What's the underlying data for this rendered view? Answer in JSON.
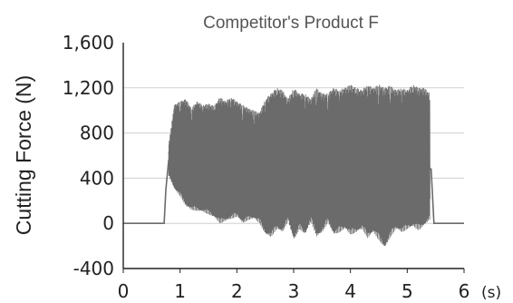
{
  "chart_data": {
    "type": "line",
    "title": "Competitor's Product F",
    "xlabel": "",
    "x_unit": "(s)",
    "ylabel": "Cutting Force (N)",
    "xlim": [
      0,
      6
    ],
    "ylim": [
      -400,
      1600
    ],
    "x_ticks": [
      "0",
      "1",
      "2",
      "3",
      "4",
      "5",
      "6"
    ],
    "y_ticks": [
      "1,600",
      "1,200",
      "800",
      "400",
      "0",
      "-400"
    ],
    "grid": "horizontal",
    "series": [
      {
        "color": "#6b6b6b",
        "points": [
          [
            0.0,
            0
          ],
          [
            0.72,
            0
          ],
          [
            0.75,
            300
          ],
          [
            0.8,
            560
          ],
          [
            0.9,
            650
          ],
          [
            1.0,
            620
          ],
          [
            1.2,
            600
          ],
          [
            1.5,
            580
          ],
          [
            1.8,
            560
          ],
          [
            2.0,
            600
          ],
          [
            2.3,
            560
          ],
          [
            2.5,
            500
          ],
          [
            2.8,
            560
          ],
          [
            3.0,
            520
          ],
          [
            3.3,
            540
          ],
          [
            3.6,
            500
          ],
          [
            4.0,
            540
          ],
          [
            4.3,
            500
          ],
          [
            4.6,
            520
          ],
          [
            5.0,
            500
          ],
          [
            5.3,
            520
          ],
          [
            5.42,
            480
          ],
          [
            5.47,
            0
          ],
          [
            6.0,
            0
          ]
        ],
        "envelope": [
          [
            0.8,
            420,
            700
          ],
          [
            0.9,
            300,
            1050
          ],
          [
            1.0,
            240,
            1080
          ],
          [
            1.1,
            150,
            1100
          ],
          [
            1.2,
            120,
            1020
          ],
          [
            1.3,
            110,
            1080
          ],
          [
            1.4,
            100,
            1050
          ],
          [
            1.5,
            80,
            1060
          ],
          [
            1.6,
            50,
            1040
          ],
          [
            1.7,
            0,
            1120
          ],
          [
            1.8,
            20,
            1080
          ],
          [
            1.9,
            40,
            1120
          ],
          [
            2.0,
            60,
            1080
          ],
          [
            2.1,
            0,
            1050
          ],
          [
            2.2,
            30,
            1020
          ],
          [
            2.3,
            40,
            1000
          ],
          [
            2.4,
            0,
            980
          ],
          [
            2.5,
            -100,
            1100
          ],
          [
            2.6,
            -120,
            1150
          ],
          [
            2.7,
            -50,
            1200
          ],
          [
            2.8,
            -80,
            1180
          ],
          [
            2.9,
            20,
            1100
          ],
          [
            3.0,
            -150,
            1200
          ],
          [
            3.1,
            -50,
            1150
          ],
          [
            3.2,
            -100,
            1150
          ],
          [
            3.3,
            20,
            1100
          ],
          [
            3.4,
            -120,
            1200
          ],
          [
            3.5,
            -80,
            1150
          ],
          [
            3.6,
            10,
            1150
          ],
          [
            3.7,
            -100,
            1200
          ],
          [
            3.8,
            -80,
            1180
          ],
          [
            3.9,
            -50,
            1200
          ],
          [
            4.0,
            -100,
            1230
          ],
          [
            4.1,
            -80,
            1200
          ],
          [
            4.2,
            -50,
            1180
          ],
          [
            4.3,
            -130,
            1230
          ],
          [
            4.4,
            -80,
            1200
          ],
          [
            4.5,
            -150,
            1230
          ],
          [
            4.6,
            -220,
            1200
          ],
          [
            4.7,
            -120,
            1220
          ],
          [
            4.8,
            -50,
            1180
          ],
          [
            4.9,
            -80,
            1200
          ],
          [
            5.0,
            -50,
            1180
          ],
          [
            5.1,
            -30,
            1230
          ],
          [
            5.2,
            -60,
            1200
          ],
          [
            5.3,
            -20,
            1200
          ],
          [
            5.4,
            40,
            1150
          ]
        ]
      }
    ]
  }
}
